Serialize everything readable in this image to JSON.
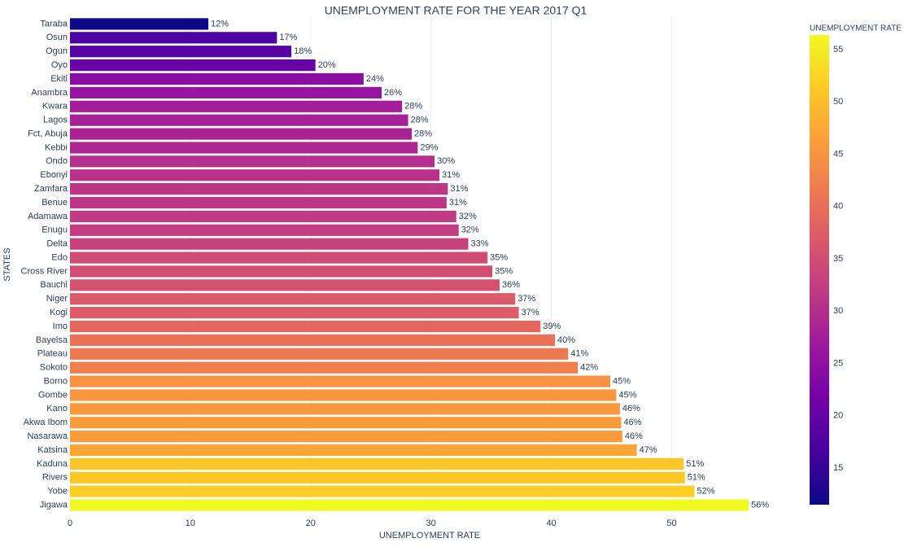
{
  "chart_data": {
    "type": "hbar",
    "title": "UNEMPLOYMENT RATE FOR THE YEAR 2017 Q1",
    "x_label": "UNEMPLOYMENT RATE",
    "y_label": "STATES",
    "categories": [
      "Taraba",
      "Osun",
      "Ogun",
      "Oyo",
      "Ekiti",
      "Anambra",
      "Kwara",
      "Lagos",
      "Fct, Abuja",
      "Kebbi",
      "Ondo",
      "Ebonyi",
      "Zamfara",
      "Benue",
      "Adamawa",
      "Enugu",
      "Delta",
      "Edo",
      "Cross River",
      "Bauchi",
      "Niger",
      "Kogi",
      "Imo",
      "Bayelsa",
      "Plateau",
      "Sokoto",
      "Borno",
      "Gombe",
      "Kano",
      "Akwa Ibom",
      "Nasarawa",
      "Katsina",
      "Kaduna",
      "Rivers",
      "Yobe",
      "Jigawa"
    ],
    "values": [
      11.5,
      17.2,
      18.4,
      20.4,
      24.4,
      25.9,
      27.6,
      28.1,
      28.4,
      28.9,
      30.3,
      30.7,
      31.4,
      31.3,
      32.1,
      32.3,
      33.1,
      34.7,
      35.1,
      35.7,
      37.0,
      37.3,
      39.1,
      40.3,
      41.4,
      42.2,
      44.9,
      45.4,
      45.7,
      45.8,
      45.9,
      47.1,
      51.0,
      51.1,
      51.9,
      56.4
    ],
    "value_labels": [
      "12%",
      "17%",
      "18%",
      "20%",
      "24%",
      "26%",
      "28%",
      "28%",
      "28%",
      "29%",
      "30%",
      "31%",
      "31%",
      "31%",
      "32%",
      "32%",
      "33%",
      "35%",
      "35%",
      "36%",
      "37%",
      "37%",
      "39%",
      "40%",
      "41%",
      "42%",
      "45%",
      "45%",
      "46%",
      "46%",
      "46%",
      "47%",
      "51%",
      "51%",
      "52%",
      "56%"
    ],
    "xlim": [
      0,
      59.3
    ],
    "xticks": [
      0,
      10,
      20,
      30,
      40,
      50
    ],
    "grid": true,
    "colorbar": {
      "title": "UNEMPLOYMENT RATE",
      "range": [
        11.5,
        56.4
      ],
      "ticks": [
        15,
        20,
        25,
        30,
        35,
        40,
        45,
        50,
        55
      ],
      "colorscale": [
        "#0d0887",
        "#46039f",
        "#7201a8",
        "#9c179e",
        "#bd3786",
        "#d8576b",
        "#ed7953",
        "#fb9f3a",
        "#fdca26",
        "#f0f921"
      ]
    }
  }
}
